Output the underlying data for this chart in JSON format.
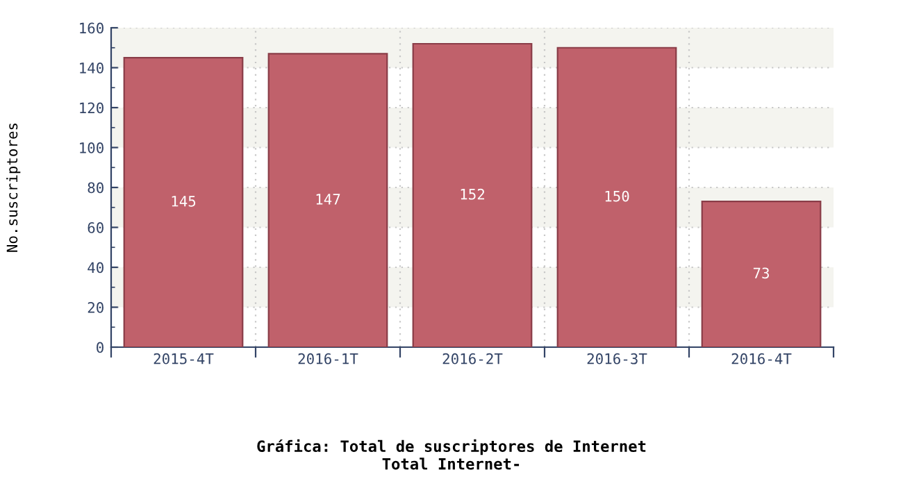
{
  "chart_data": {
    "type": "bar",
    "title": "Gráfica: Total de suscriptores de Internet",
    "subtitle": "Total Internet-",
    "ylabel": "No.suscriptores",
    "categories": [
      "2015-4T",
      "2016-1T",
      "2016-2T",
      "2016-3T",
      "2016-4T"
    ],
    "values": [
      145,
      147,
      152,
      150,
      73
    ],
    "color": "#c0616b",
    "ylim": [
      0,
      160
    ],
    "yticks": [
      0,
      20,
      40,
      60,
      80,
      100,
      120,
      140,
      160
    ],
    "grid": true,
    "data_labels": true
  }
}
